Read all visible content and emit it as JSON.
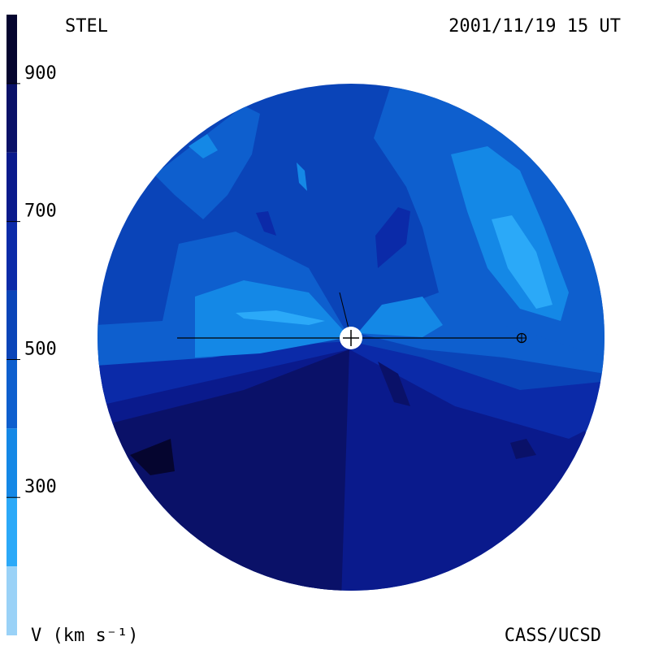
{
  "labels": {
    "top_left": "STEL",
    "top_right": "2001/11/19 15 UT",
    "bottom_left": "V (km s⁻¹)",
    "bottom_right": "CASS/UCSD"
  },
  "colors": {
    "v_1000": "#05052f",
    "v_900": "#0a1168",
    "v_800": "#0a1a8c",
    "v_700": "#0b2aa8",
    "v_600": "#0a44b8",
    "v_500": "#0e5fce",
    "v_400": "#1488e6",
    "v_300": "#2ba9f8",
    "v_200": "#9ad2f7",
    "sun": "#ffffff",
    "ink": "#000000"
  },
  "chart_data": {
    "type": "heatmap",
    "projection": "polar sky map",
    "quantity": "V",
    "unit": "km s⁻¹",
    "colorbar": {
      "range": [
        200,
        1000
      ],
      "ticks": [
        900,
        700,
        500,
        300
      ],
      "bands": [
        {
          "from": 900,
          "to": 1000,
          "color": "#05052f"
        },
        {
          "from": 800,
          "to": 900,
          "color": "#0a1168"
        },
        {
          "from": 700,
          "to": 800,
          "color": "#0a1a8c"
        },
        {
          "from": 600,
          "to": 700,
          "color": "#0b2aa8"
        },
        {
          "from": 500,
          "to": 600,
          "color": "#0a44b8"
        },
        {
          "from": 400,
          "to": 500,
          "color": "#0e5fce"
        },
        {
          "from": 300,
          "to": 400,
          "color": "#1488e6"
        },
        {
          "from": 200,
          "to": 300,
          "color": "#2ba9f8"
        },
        {
          "from": 100,
          "to": 200,
          "color": "#9ad2f7"
        }
      ]
    },
    "regions": [
      {
        "name": "southern-hemisphere-fast-wind",
        "value": 800
      },
      {
        "name": "southern-core-very-fast-wind",
        "value": 900
      },
      {
        "name": "northern-hemisphere-medium-wind",
        "value": 550
      },
      {
        "name": "equatorial-slow-wind-left",
        "value": 400
      },
      {
        "name": "equatorial-slow-wind-right",
        "value": 400
      },
      {
        "name": "northeast-slow-wind",
        "value": 300
      }
    ],
    "markers": [
      "sun",
      "earth"
    ]
  }
}
